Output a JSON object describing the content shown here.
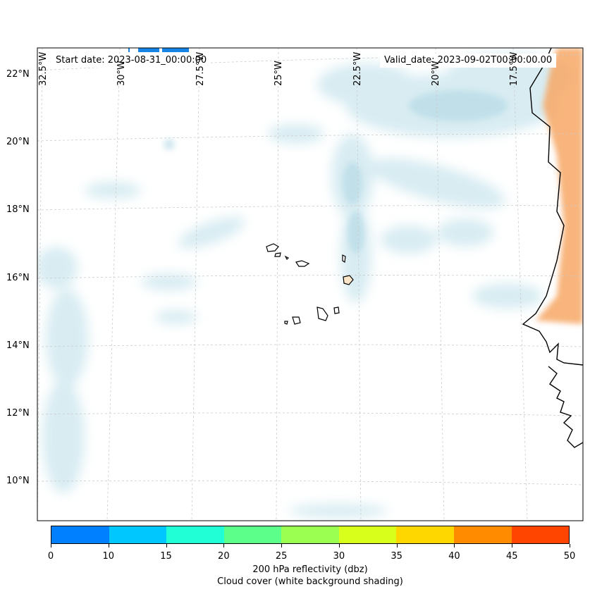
{
  "map": {
    "start_date": "Start date: 2023-08-31_00:00:00",
    "valid_date": "Valid_date: 2023-09-02T00:00:00.00",
    "lat_labels": [
      "22°N",
      "20°N",
      "18°N",
      "16°N",
      "14°N",
      "12°N",
      "10°N"
    ],
    "lon_labels": [
      "32.5°W",
      "30°W",
      "27.5°W",
      "25°W",
      "22.5°W",
      "20°W",
      "17.5°W"
    ],
    "land_color": "#ffffff",
    "cloud_color": "#bfe0ea",
    "reflectivity_color": "#f6a35c"
  },
  "colorbar": {
    "label": "200 hPa reflectivity (dbz)",
    "sublabel": "Cloud cover (white background shading)",
    "ticks": [
      "0",
      "10",
      "15",
      "20",
      "25",
      "30",
      "35",
      "40",
      "45",
      "50"
    ],
    "colors": [
      "#0080ff",
      "#00c8ff",
      "#20ffd6",
      "#5cff8a",
      "#9bff52",
      "#d8ff1c",
      "#ffd700",
      "#ff8c00",
      "#ff4500"
    ]
  }
}
